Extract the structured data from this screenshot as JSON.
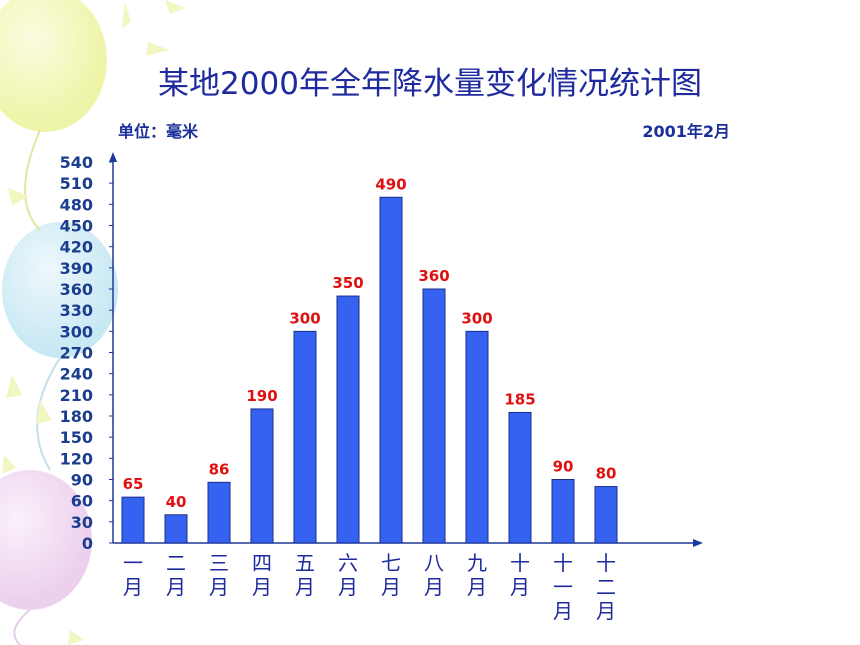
{
  "header": {
    "title": "某地2000年全年降水量变化情况统计图",
    "unit_label": "单位：毫米",
    "date_label": "2001年2月"
  },
  "colors": {
    "bar": "#3562f0",
    "bar_edge": "#1a2e8c",
    "axis": "#1e3a9c",
    "tick_label": "#1b3d8f",
    "value_label": "#e01010",
    "category_label": "#1e2a9e",
    "title": "#1e2a9e"
  },
  "chart_data": {
    "type": "bar",
    "title": "某地2000年全年降水量变化情况统计图",
    "ylabel": "单位：毫米",
    "xlabel": "",
    "categories": [
      "一月",
      "二月",
      "三月",
      "四月",
      "五月",
      "六月",
      "七月",
      "八月",
      "九月",
      "十月",
      "十一月",
      "十二月"
    ],
    "category_lines": [
      [
        "一",
        "月"
      ],
      [
        "二",
        "月"
      ],
      [
        "三",
        "月"
      ],
      [
        "四",
        "月"
      ],
      [
        "五",
        "月"
      ],
      [
        "六",
        "月"
      ],
      [
        "七",
        "月"
      ],
      [
        "八",
        "月"
      ],
      [
        "九",
        "月"
      ],
      [
        "十",
        "月"
      ],
      [
        "十",
        "一",
        "月"
      ],
      [
        "十",
        "二",
        "月"
      ]
    ],
    "values": [
      65,
      40,
      86,
      190,
      300,
      350,
      490,
      360,
      300,
      185,
      90,
      80
    ],
    "value_labels": [
      "65",
      "40",
      "86",
      "190",
      "300",
      "350",
      "490",
      "360",
      "300",
      "185",
      "90",
      "80"
    ],
    "ylim": [
      0,
      540
    ],
    "yticks": [
      0,
      30,
      60,
      90,
      120,
      150,
      180,
      210,
      240,
      270,
      300,
      330,
      360,
      390,
      420,
      450,
      480,
      510,
      540
    ],
    "grid": false,
    "legend": "none"
  }
}
